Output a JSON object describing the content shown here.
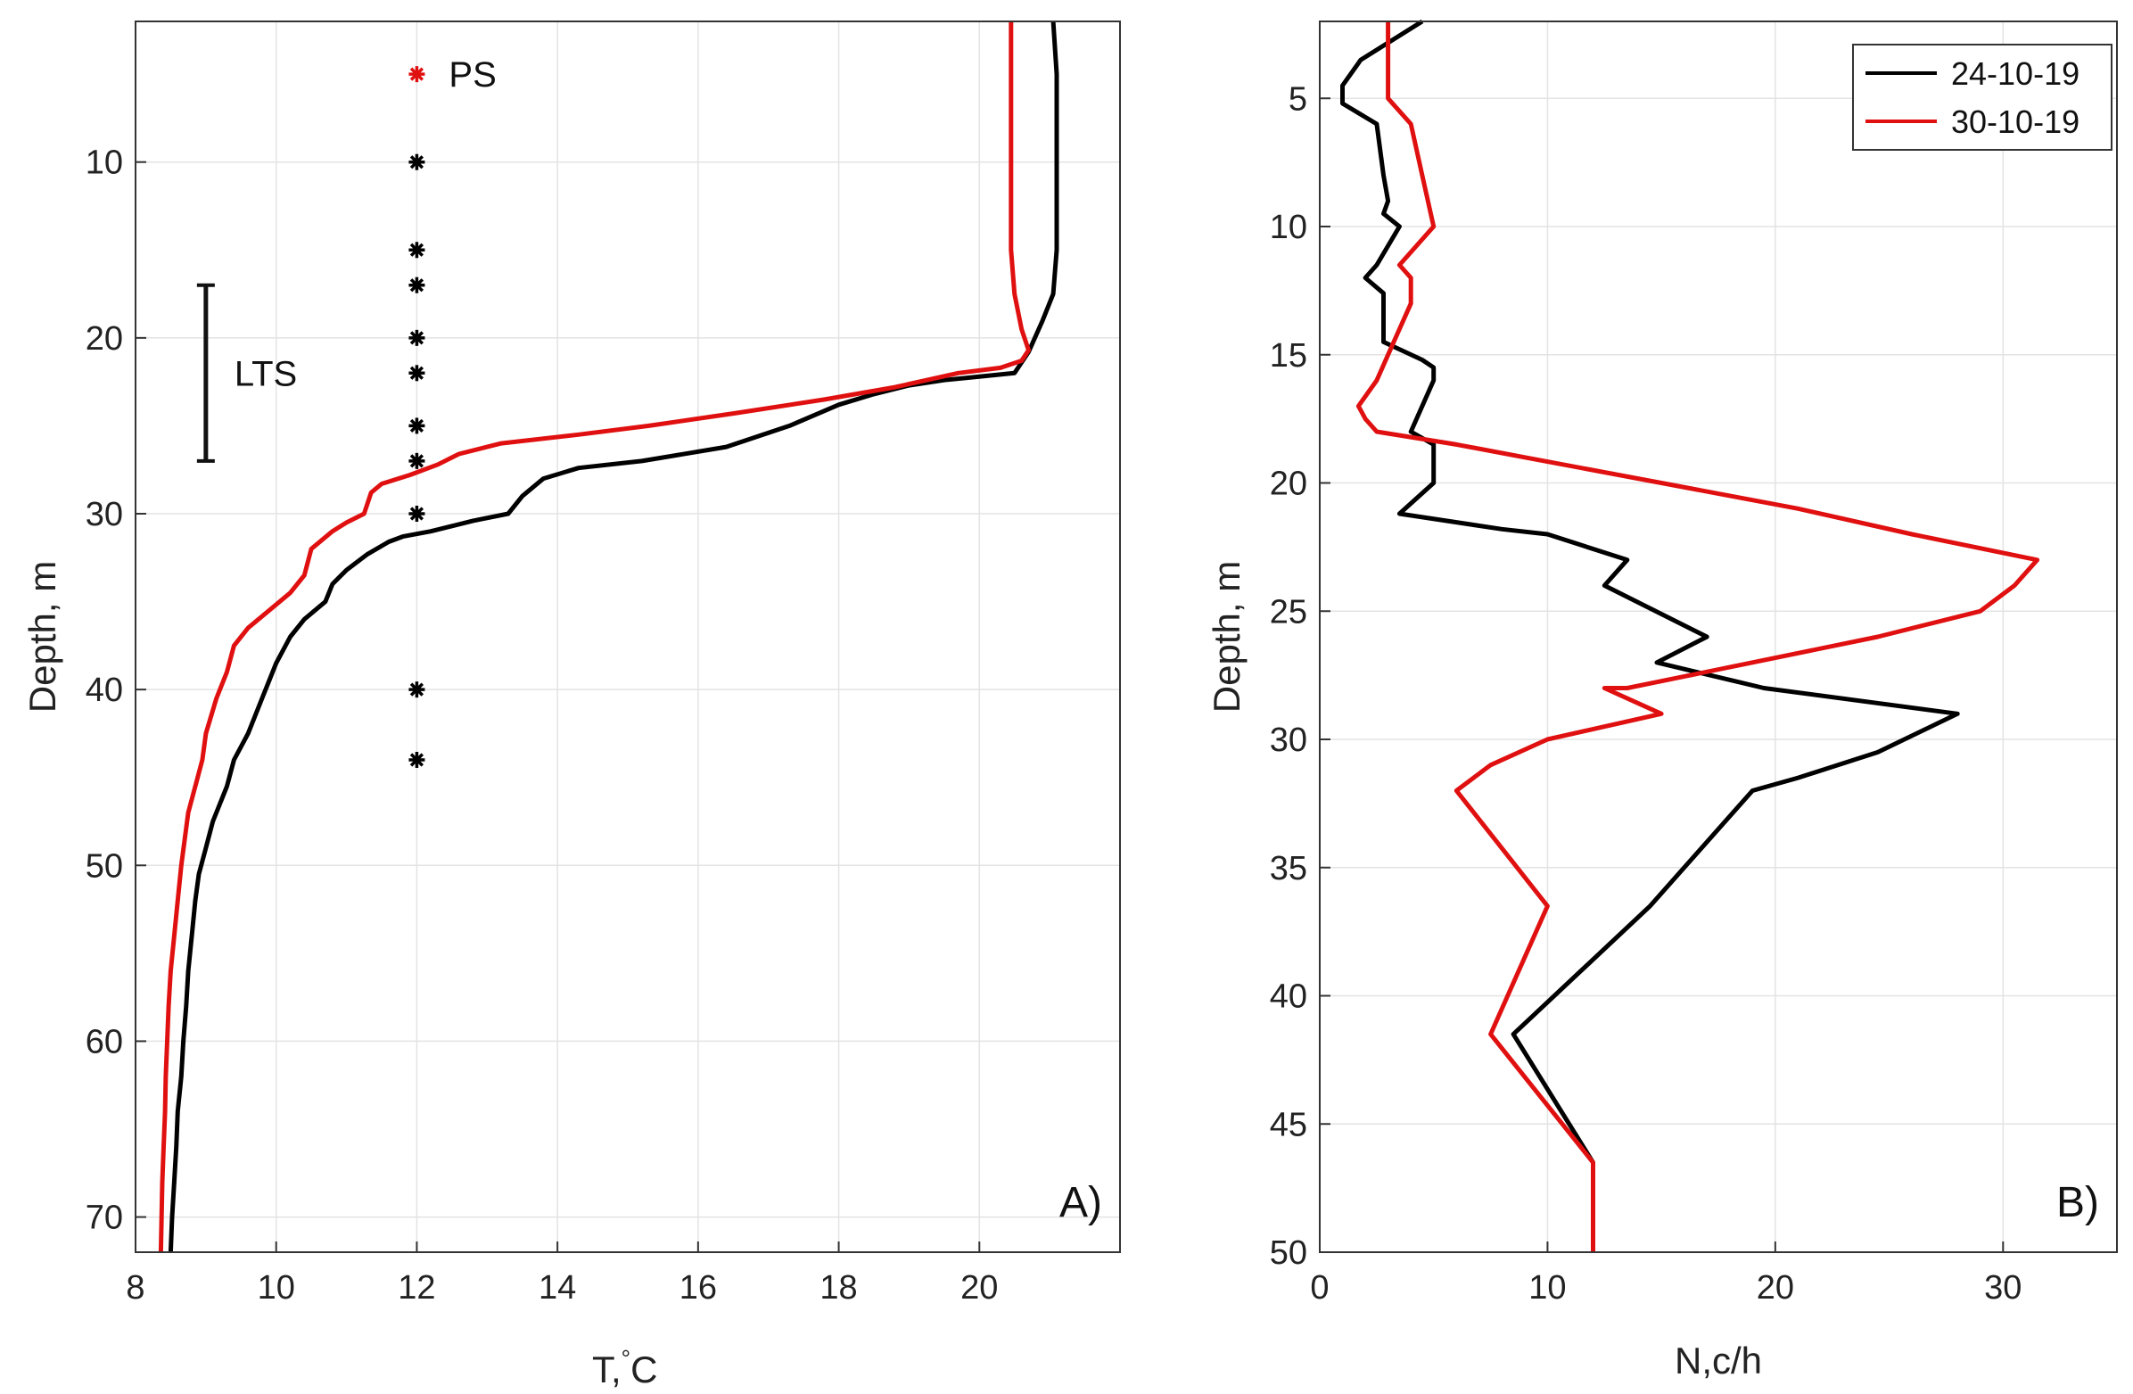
{
  "chart_data": [
    {
      "type": "line",
      "panel_label": "A)",
      "xlabel_main": "T,",
      "xlabel_sup": "°",
      "xlabel_unit": "C",
      "ylabel": "Depth, m",
      "xlim": [
        8,
        22
      ],
      "ylim": [
        2,
        72
      ],
      "y_reversed": true,
      "grid": true,
      "x_ticks": [
        8,
        10,
        12,
        14,
        16,
        18,
        20
      ],
      "y_ticks": [
        10,
        20,
        30,
        40,
        50,
        60,
        70
      ],
      "series": [
        {
          "color": "#000000",
          "points": [
            [
              21.05,
              2.0
            ],
            [
              21.1,
              5
            ],
            [
              21.1,
              10
            ],
            [
              21.1,
              15
            ],
            [
              21.05,
              17.5
            ],
            [
              20.9,
              19
            ],
            [
              20.7,
              20.8
            ],
            [
              20.5,
              22
            ],
            [
              20.0,
              22.2
            ],
            [
              19.5,
              22.4
            ],
            [
              19.0,
              22.7
            ],
            [
              18.5,
              23.2
            ],
            [
              18.0,
              23.8
            ],
            [
              17.3,
              25
            ],
            [
              16.4,
              26.2
            ],
            [
              15.2,
              27
            ],
            [
              14.3,
              27.4
            ],
            [
              13.8,
              28
            ],
            [
              13.5,
              29
            ],
            [
              13.3,
              30
            ],
            [
              12.8,
              30.4
            ],
            [
              12.5,
              30.7
            ],
            [
              12.2,
              31.0
            ],
            [
              11.8,
              31.3
            ],
            [
              11.6,
              31.6
            ],
            [
              11.3,
              32.3
            ],
            [
              11.0,
              33.2
            ],
            [
              10.8,
              34.0
            ],
            [
              10.7,
              35.0
            ],
            [
              10.4,
              36.0
            ],
            [
              10.2,
              37.0
            ],
            [
              10.0,
              38.5
            ],
            [
              9.9,
              39.5
            ],
            [
              9.8,
              40.5
            ],
            [
              9.6,
              42.5
            ],
            [
              9.4,
              44.0
            ],
            [
              9.3,
              45.5
            ],
            [
              9.1,
              47.5
            ],
            [
              9.0,
              49.0
            ],
            [
              8.9,
              50.5
            ],
            [
              8.85,
              52.0
            ],
            [
              8.8,
              54.0
            ],
            [
              8.75,
              56.0
            ],
            [
              8.72,
              58.0
            ],
            [
              8.68,
              60.0
            ],
            [
              8.65,
              62.0
            ],
            [
              8.6,
              64.0
            ],
            [
              8.58,
              66.0
            ],
            [
              8.55,
              68.0
            ],
            [
              8.52,
              70.0
            ],
            [
              8.5,
              72.0
            ]
          ]
        },
        {
          "color": "#e01010",
          "points": [
            [
              20.45,
              2.0
            ],
            [
              20.45,
              5
            ],
            [
              20.45,
              10
            ],
            [
              20.45,
              15
            ],
            [
              20.5,
              17.5
            ],
            [
              20.6,
              19.5
            ],
            [
              20.7,
              20.7
            ],
            [
              20.6,
              21.3
            ],
            [
              20.3,
              21.7
            ],
            [
              19.7,
              22.0
            ],
            [
              18.8,
              22.8
            ],
            [
              17.8,
              23.5
            ],
            [
              16.5,
              24.3
            ],
            [
              15.3,
              25.0
            ],
            [
              14.3,
              25.5
            ],
            [
              13.2,
              26.0
            ],
            [
              12.6,
              26.6
            ],
            [
              12.3,
              27.2
            ],
            [
              11.9,
              27.8
            ],
            [
              11.5,
              28.3
            ],
            [
              11.35,
              28.8
            ],
            [
              11.25,
              30.0
            ],
            [
              11.0,
              30.5
            ],
            [
              10.8,
              31.0
            ],
            [
              10.5,
              32.0
            ],
            [
              10.4,
              33.5
            ],
            [
              10.2,
              34.5
            ],
            [
              9.9,
              35.5
            ],
            [
              9.6,
              36.5
            ],
            [
              9.4,
              37.5
            ],
            [
              9.3,
              39.0
            ],
            [
              9.15,
              40.5
            ],
            [
              9.0,
              42.5
            ],
            [
              8.95,
              44.0
            ],
            [
              8.85,
              45.5
            ],
            [
              8.75,
              47.0
            ],
            [
              8.7,
              48.5
            ],
            [
              8.65,
              50.0
            ],
            [
              8.6,
              52.0
            ],
            [
              8.55,
              54.0
            ],
            [
              8.5,
              56.0
            ],
            [
              8.47,
              58.0
            ],
            [
              8.45,
              60.0
            ],
            [
              8.43,
              62.0
            ],
            [
              8.42,
              64.0
            ],
            [
              8.4,
              66.0
            ],
            [
              8.38,
              68.0
            ],
            [
              8.37,
              70.0
            ],
            [
              8.36,
              72.0
            ]
          ]
        }
      ],
      "markers": {
        "x": 12,
        "color": "#000000",
        "depths": [
          10,
          15,
          17,
          20,
          22,
          25,
          27,
          30,
          40,
          44
        ]
      },
      "ps_marker": {
        "x": 12,
        "depth": 5,
        "color": "#e01010",
        "label": "PS"
      },
      "lts_bar": {
        "x": 9,
        "from": 17,
        "to": 27,
        "label": "LTS"
      }
    },
    {
      "type": "line",
      "panel_label": "B)",
      "xlabel": "N,c/h",
      "ylabel": "Depth, m",
      "xlim": [
        0,
        35
      ],
      "ylim": [
        2,
        50
      ],
      "y_reversed": true,
      "grid": true,
      "x_ticks": [
        0,
        10,
        20,
        30
      ],
      "y_ticks": [
        5,
        10,
        15,
        20,
        25,
        30,
        35,
        40,
        45,
        50
      ],
      "legend_position": "top-right",
      "series": [
        {
          "name": "24-10-19",
          "color": "#000000",
          "points": [
            [
              4.5,
              2.0
            ],
            [
              1.8,
              3.5
            ],
            [
              1.0,
              4.5
            ],
            [
              1.0,
              5.2
            ],
            [
              2.5,
              6.0
            ],
            [
              2.8,
              8.0
            ],
            [
              3.0,
              9.0
            ],
            [
              2.8,
              9.5
            ],
            [
              3.5,
              10.0
            ],
            [
              2.5,
              11.5
            ],
            [
              2.0,
              12.0
            ],
            [
              2.8,
              12.6
            ],
            [
              2.8,
              14.5
            ],
            [
              4.5,
              15.2
            ],
            [
              5.0,
              15.5
            ],
            [
              5.0,
              16.0
            ],
            [
              4.0,
              18.0
            ],
            [
              5.0,
              18.5
            ],
            [
              5.0,
              20.0
            ],
            [
              3.5,
              21.2
            ],
            [
              8.0,
              21.8
            ],
            [
              10.0,
              22.0
            ],
            [
              13.5,
              23.0
            ],
            [
              12.5,
              24.0
            ],
            [
              17.0,
              26.0
            ],
            [
              14.8,
              27.0
            ],
            [
              19.5,
              28.0
            ],
            [
              28.0,
              29.0
            ],
            [
              24.5,
              30.5
            ],
            [
              21.0,
              31.5
            ],
            [
              19.0,
              32.0
            ],
            [
              14.5,
              36.5
            ],
            [
              8.5,
              41.5
            ],
            [
              12.0,
              46.5
            ],
            [
              12.0,
              50.0
            ]
          ]
        },
        {
          "name": "30-10-19",
          "color": "#e01010",
          "points": [
            [
              3.0,
              2.0
            ],
            [
              3.0,
              5.0
            ],
            [
              4.0,
              6.0
            ],
            [
              4.5,
              8.0
            ],
            [
              5.0,
              10.0
            ],
            [
              3.5,
              11.5
            ],
            [
              4.0,
              12.0
            ],
            [
              4.0,
              13.0
            ],
            [
              3.5,
              14.0
            ],
            [
              3.0,
              15.0
            ],
            [
              2.5,
              16.0
            ],
            [
              1.7,
              17.0
            ],
            [
              2.0,
              17.5
            ],
            [
              2.5,
              18.0
            ],
            [
              6.0,
              18.5
            ],
            [
              9.0,
              19.0
            ],
            [
              15.0,
              20.0
            ],
            [
              21.0,
              21.0
            ],
            [
              26.0,
              22.0
            ],
            [
              31.5,
              23.0
            ],
            [
              30.5,
              24.0
            ],
            [
              29.0,
              25.0
            ],
            [
              24.5,
              26.0
            ],
            [
              19.0,
              27.0
            ],
            [
              13.5,
              28.0
            ],
            [
              12.5,
              28.0
            ],
            [
              15.0,
              29.0
            ],
            [
              10.0,
              30.0
            ],
            [
              7.5,
              31.0
            ],
            [
              6.0,
              32.0
            ],
            [
              10.0,
              36.5
            ],
            [
              7.5,
              41.5
            ],
            [
              12.0,
              46.5
            ],
            [
              12.0,
              50.0
            ]
          ]
        }
      ]
    }
  ]
}
